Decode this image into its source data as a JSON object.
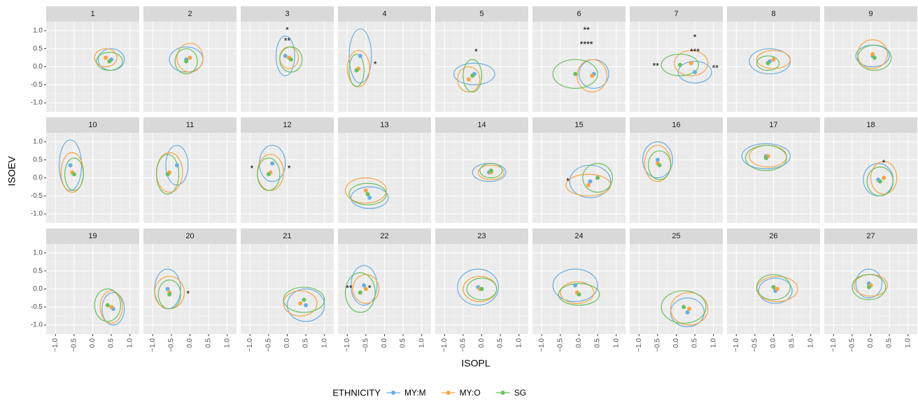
{
  "chart_data": {
    "type": "faceted-contour-scatter",
    "x_label": "ISOPL",
    "y_label": "ISOEV",
    "legend_title": "ETHNICITY",
    "legend_position": "bottom",
    "groups": [
      {
        "name": "MY:M",
        "color": "#6aaee0"
      },
      {
        "name": "MY:O",
        "color": "#f6a545"
      },
      {
        "name": "SG",
        "color": "#6abf5f"
      }
    ],
    "xlim": [
      -1.25,
      1.25
    ],
    "ylim": [
      -1.25,
      1.25
    ],
    "xticks": [
      {
        "value": -1,
        "label": "−1.0"
      },
      {
        "value": -0.5,
        "label": "−0.5"
      },
      {
        "value": 0,
        "label": "0.0"
      },
      {
        "value": 0.5,
        "label": "0.5"
      },
      {
        "value": 1,
        "label": "1.0"
      }
    ],
    "yticks": [
      {
        "value": -1,
        "label": "-1.0"
      },
      {
        "value": -0.5,
        "label": "-0.5"
      },
      {
        "value": 0,
        "label": "0.0"
      },
      {
        "value": 0.5,
        "label": "0.5"
      },
      {
        "value": 1,
        "label": "1.0"
      }
    ],
    "minor_ticks": [
      -0.75,
      -0.25,
      0.25,
      0.75
    ],
    "grid": true,
    "facets": [
      {
        "label": "1",
        "points": [
          [
            0.5,
            0.2,
            0.35,
            0.3
          ],
          [
            0.35,
            0.25,
            0.3,
            0.25
          ],
          [
            0.45,
            0.15,
            0.35,
            0.25
          ]
        ],
        "annotations": []
      },
      {
        "label": "2",
        "points": [
          [
            -0.1,
            0.2,
            0.45,
            0.35
          ],
          [
            0,
            0.25,
            0.35,
            0.4
          ],
          [
            -0.1,
            0.15,
            0.3,
            0.35
          ]
        ],
        "annotations": []
      },
      {
        "label": "3",
        "points": [
          [
            -0.05,
            0.3,
            0.25,
            0.55
          ],
          [
            0.05,
            0.25,
            0.25,
            0.3
          ],
          [
            0.1,
            0.2,
            0.3,
            0.35
          ]
        ],
        "annotations": [
          {
            "label": "*",
            "x": 0,
            "y": 1.0
          },
          {
            "label": "**",
            "x": 0,
            "y": 0.7
          }
        ]
      },
      {
        "label": "4",
        "points": [
          [
            -0.65,
            0.3,
            0.3,
            0.75
          ],
          [
            -0.7,
            -0.05,
            0.3,
            0.5
          ],
          [
            -0.75,
            -0.1,
            0.2,
            0.45
          ]
        ],
        "annotations": [
          {
            "label": "*",
            "x": -0.25,
            "y": 0.05
          }
        ]
      },
      {
        "label": "5",
        "points": [
          [
            -0.2,
            -0.2,
            0.55,
            0.3
          ],
          [
            -0.35,
            -0.35,
            0.3,
            0.35
          ],
          [
            -0.25,
            -0.25,
            0.25,
            0.45
          ]
        ],
        "annotations": [
          {
            "label": "*",
            "x": -0.15,
            "y": 0.4
          }
        ]
      },
      {
        "label": "6",
        "points": [
          [
            0.4,
            -0.2,
            0.4,
            0.4
          ],
          [
            0.35,
            -0.25,
            0.4,
            0.45
          ],
          [
            -0.1,
            -0.2,
            0.6,
            0.4
          ]
        ],
        "annotations": [
          {
            "label": "**",
            "x": 0.2,
            "y": 1.0
          },
          {
            "label": "****",
            "x": 0.2,
            "y": 0.6
          }
        ]
      },
      {
        "label": "7",
        "points": [
          [
            0.5,
            -0.15,
            0.45,
            0.3
          ],
          [
            0.4,
            0.1,
            0.45,
            0.35
          ],
          [
            0.1,
            0.05,
            0.5,
            0.3
          ]
        ],
        "annotations": [
          {
            "label": "*",
            "x": 0.5,
            "y": 0.8
          },
          {
            "label": "***",
            "x": 0.5,
            "y": 0.4
          },
          {
            "label": "**",
            "x": -0.55,
            "y": 0
          },
          {
            "label": "**",
            "x": 1.05,
            "y": -0.05
          }
        ]
      },
      {
        "label": "8",
        "points": [
          [
            -0.1,
            0.15,
            0.55,
            0.35
          ],
          [
            0,
            0.2,
            0.45,
            0.25
          ],
          [
            -0.15,
            0.1,
            0.3,
            0.2
          ]
        ],
        "annotations": []
      },
      {
        "label": "9",
        "points": [
          [
            0.05,
            0.3,
            0.45,
            0.3
          ],
          [
            0.05,
            0.35,
            0.4,
            0.4
          ],
          [
            0.1,
            0.25,
            0.45,
            0.35
          ]
        ],
        "annotations": []
      },
      {
        "label": "10",
        "points": [
          [
            -0.6,
            0.35,
            0.3,
            0.7
          ],
          [
            -0.55,
            0.15,
            0.3,
            0.55
          ],
          [
            -0.5,
            0.1,
            0.25,
            0.45
          ]
        ],
        "annotations": []
      },
      {
        "label": "11",
        "points": [
          [
            -0.35,
            0.35,
            0.3,
            0.55
          ],
          [
            -0.55,
            0.15,
            0.35,
            0.55
          ],
          [
            -0.6,
            0.1,
            0.3,
            0.55
          ]
        ],
        "annotations": []
      },
      {
        "label": "12",
        "points": [
          [
            -0.4,
            0.4,
            0.35,
            0.5
          ],
          [
            -0.45,
            0.15,
            0.35,
            0.5
          ],
          [
            -0.5,
            0.1,
            0.3,
            0.45
          ]
        ],
        "annotations": [
          {
            "label": "*",
            "x": -0.95,
            "y": 0.25
          },
          {
            "label": "*",
            "x": 0.05,
            "y": 0.25
          }
        ]
      },
      {
        "label": "13",
        "points": [
          [
            -0.4,
            -0.55,
            0.5,
            0.3
          ],
          [
            -0.5,
            -0.35,
            0.55,
            0.35
          ],
          [
            -0.45,
            -0.45,
            0.5,
            0.3
          ]
        ],
        "annotations": []
      },
      {
        "label": "14",
        "points": [
          [
            0.2,
            0.15,
            0.45,
            0.25
          ],
          [
            0.25,
            0.15,
            0.35,
            0.2
          ],
          [
            0.25,
            0.2,
            0.3,
            0.2
          ]
        ],
        "annotations": []
      },
      {
        "label": "15",
        "points": [
          [
            0.3,
            -0.1,
            0.55,
            0.45
          ],
          [
            0.25,
            -0.2,
            0.6,
            0.3
          ],
          [
            0.5,
            0,
            0.4,
            0.4
          ]
        ],
        "annotations": [
          {
            "label": "*",
            "x": -0.3,
            "y": -0.1
          }
        ]
      },
      {
        "label": "16",
        "points": [
          [
            -0.5,
            0.5,
            0.4,
            0.5
          ],
          [
            -0.5,
            0.4,
            0.35,
            0.5
          ],
          [
            -0.45,
            0.35,
            0.3,
            0.4
          ]
        ],
        "annotations": []
      },
      {
        "label": "17",
        "points": [
          [
            -0.2,
            0.6,
            0.65,
            0.35
          ],
          [
            -0.15,
            0.6,
            0.5,
            0.3
          ],
          [
            -0.2,
            0.55,
            0.55,
            0.35
          ]
        ],
        "annotations": []
      },
      {
        "label": "18",
        "points": [
          [
            0.2,
            -0.05,
            0.4,
            0.45
          ],
          [
            0.35,
            0,
            0.35,
            0.45
          ],
          [
            0.25,
            -0.1,
            0.35,
            0.4
          ]
        ],
        "annotations": [
          {
            "label": "*",
            "x": 0.35,
            "y": 0.4
          }
        ]
      },
      {
        "label": "19",
        "points": [
          [
            0.55,
            -0.55,
            0.3,
            0.45
          ],
          [
            0.5,
            -0.5,
            0.3,
            0.45
          ],
          [
            0.4,
            -0.45,
            0.35,
            0.45
          ]
        ],
        "annotations": []
      },
      {
        "label": "20",
        "points": [
          [
            -0.6,
            0,
            0.35,
            0.55
          ],
          [
            -0.55,
            -0.1,
            0.4,
            0.45
          ],
          [
            -0.55,
            -0.15,
            0.3,
            0.4
          ]
        ],
        "annotations": [
          {
            "label": "*",
            "x": -0.05,
            "y": -0.15
          }
        ]
      },
      {
        "label": "21",
        "points": [
          [
            0.5,
            -0.45,
            0.5,
            0.45
          ],
          [
            0.35,
            -0.4,
            0.45,
            0.35
          ],
          [
            0.45,
            -0.3,
            0.55,
            0.35
          ]
        ],
        "annotations": []
      },
      {
        "label": "22",
        "points": [
          [
            -0.55,
            0.1,
            0.35,
            0.55
          ],
          [
            -0.5,
            0,
            0.35,
            0.4
          ],
          [
            -0.65,
            -0.1,
            0.4,
            0.55
          ]
        ],
        "annotations": [
          {
            "label": "*",
            "x": -0.4,
            "y": 0
          },
          {
            "label": "**",
            "x": -0.95,
            "y": 0
          }
        ]
      },
      {
        "label": "23",
        "points": [
          [
            -0.1,
            0.05,
            0.55,
            0.5
          ],
          [
            -0.05,
            0,
            0.45,
            0.35
          ],
          [
            0,
            0,
            0.4,
            0.3
          ]
        ],
        "annotations": []
      },
      {
        "label": "24",
        "points": [
          [
            -0.1,
            0.1,
            0.6,
            0.45
          ],
          [
            -0.05,
            -0.1,
            0.45,
            0.3
          ],
          [
            0,
            -0.15,
            0.55,
            0.3
          ]
        ],
        "annotations": []
      },
      {
        "label": "25",
        "points": [
          [
            0.3,
            -0.65,
            0.45,
            0.4
          ],
          [
            0.35,
            -0.55,
            0.5,
            0.45
          ],
          [
            0.2,
            -0.5,
            0.6,
            0.45
          ]
        ],
        "annotations": []
      },
      {
        "label": "26",
        "points": [
          [
            0.05,
            -0.05,
            0.45,
            0.35
          ],
          [
            0.1,
            0,
            0.55,
            0.35
          ],
          [
            0,
            0.05,
            0.45,
            0.35
          ]
        ],
        "annotations": []
      },
      {
        "label": "27",
        "points": [
          [
            -0.05,
            0.15,
            0.35,
            0.4
          ],
          [
            0,
            0.1,
            0.45,
            0.3
          ],
          [
            -0.05,
            0.05,
            0.45,
            0.35
          ]
        ],
        "annotations": []
      }
    ]
  }
}
